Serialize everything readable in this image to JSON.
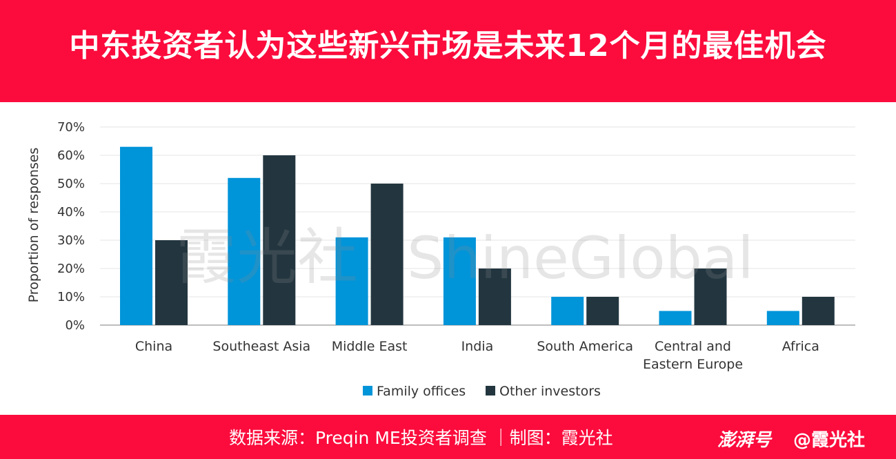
{
  "header": {
    "title": "中东投资者认为这些新兴市场是未来12个月的最佳机会",
    "background_color": "#fb0c3d"
  },
  "watermark": {
    "text_cn": "霞光社",
    "text_en": "ShineGlobal"
  },
  "footer": {
    "source": "数据来源：Preqin ME投资者调查 ｜制图：霞光社",
    "brand": "澎湃号",
    "account": "@霞光社"
  },
  "chart_data": {
    "type": "bar",
    "title": "",
    "xlabel": "",
    "ylabel": "Proportion of responses",
    "ylim": [
      0,
      70
    ],
    "yticks": [
      "0%",
      "10%",
      "20%",
      "30%",
      "40%",
      "50%",
      "60%",
      "70%"
    ],
    "ytick_values": [
      0,
      10,
      20,
      30,
      40,
      50,
      60,
      70
    ],
    "grid": true,
    "legend_position": "bottom-center",
    "categories": [
      [
        "China"
      ],
      [
        "Southeast Asia"
      ],
      [
        "Middle East"
      ],
      [
        "India"
      ],
      [
        "South America"
      ],
      [
        "Central and",
        "Eastern Europe"
      ],
      [
        "Africa"
      ]
    ],
    "series": [
      {
        "name": "Family offices",
        "color": "#0094d9",
        "values": [
          63,
          52,
          31,
          31,
          10,
          5,
          5
        ]
      },
      {
        "name": "Other investors",
        "color": "#233640",
        "values": [
          30,
          60,
          50,
          20,
          10,
          20,
          10
        ]
      }
    ]
  }
}
